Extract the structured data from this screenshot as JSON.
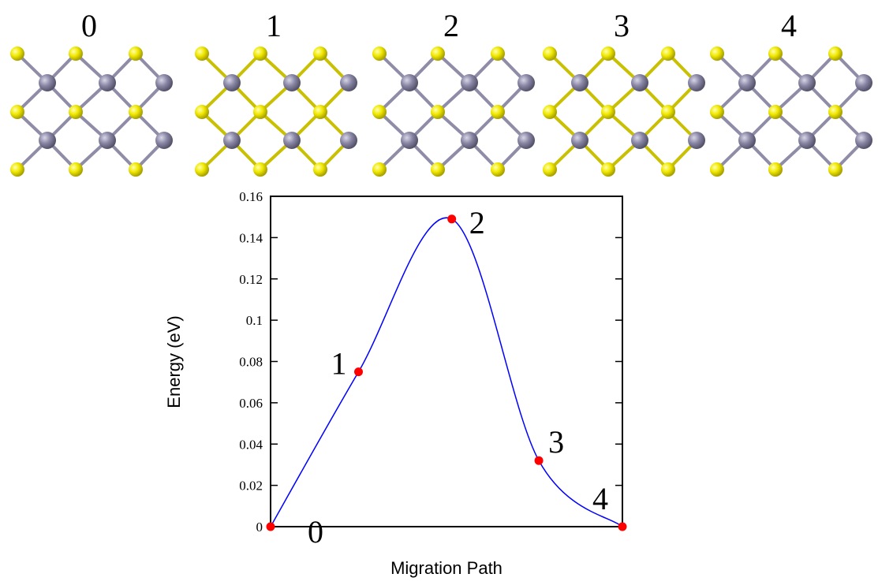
{
  "chart_data": {
    "type": "line",
    "x_label": "Migration Path",
    "y_label": "Energy (eV)",
    "point_labels": [
      "0",
      "1",
      "2",
      "3",
      "4"
    ],
    "x": [
      0,
      1,
      2.06,
      3.05,
      4
    ],
    "series": [
      {
        "color": "#0000ff",
        "marker_color": "#ff0000",
        "values": [
          0,
          0.075,
          0.149,
          0.032,
          0
        ]
      }
    ],
    "xlim": [
      0,
      4
    ],
    "ylim": [
      0,
      0.16
    ],
    "yticks": [
      0,
      0.02,
      0.04,
      0.06,
      0.08,
      0.1,
      0.12,
      0.14,
      0.16
    ]
  }
}
